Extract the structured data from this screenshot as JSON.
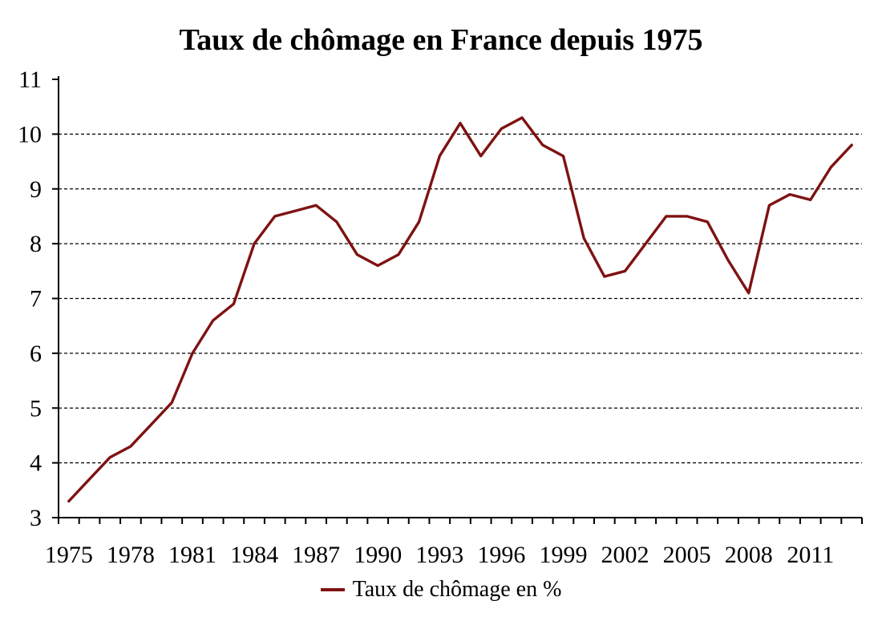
{
  "page": {
    "background_color": "#ffffff",
    "text_color": "#000000"
  },
  "chart_data": {
    "type": "line",
    "title": "Taux de chômage en France depuis 1975",
    "legend_label": "Taux de chômage en %",
    "legend_position": "bottom-center",
    "x": [
      1975,
      1976,
      1977,
      1978,
      1979,
      1980,
      1981,
      1982,
      1983,
      1984,
      1985,
      1986,
      1987,
      1988,
      1989,
      1990,
      1991,
      1992,
      1993,
      1994,
      1995,
      1996,
      1997,
      1998,
      1999,
      2000,
      2001,
      2002,
      2003,
      2004,
      2005,
      2006,
      2007,
      2008,
      2009,
      2010,
      2011,
      2012,
      2013
    ],
    "series": [
      {
        "name": "Taux de chômage en %",
        "color": "#7f1212",
        "values": [
          3.3,
          3.7,
          4.1,
          4.3,
          4.7,
          5.1,
          6.0,
          6.6,
          6.9,
          8.0,
          8.5,
          8.6,
          8.7,
          8.4,
          7.8,
          7.6,
          7.8,
          8.4,
          9.6,
          10.2,
          9.6,
          10.1,
          10.3,
          9.8,
          9.6,
          8.1,
          7.4,
          7.5,
          8.0,
          8.5,
          8.5,
          8.4,
          7.7,
          7.1,
          8.7,
          8.9,
          8.8,
          9.4,
          9.8
        ]
      }
    ],
    "xlabel": "",
    "ylabel": "",
    "ylim": [
      3,
      11
    ],
    "y_tick_step": 1,
    "y_tick_labels": [
      "3",
      "4",
      "5",
      "6",
      "7",
      "8",
      "9",
      "10",
      "11"
    ],
    "x_tick_label_interval": 3,
    "x_tick_labels": [
      "1975",
      "1978",
      "1981",
      "1984",
      "1987",
      "1990",
      "1993",
      "1996",
      "1999",
      "2002",
      "2005",
      "2008",
      "2011"
    ],
    "grid": "horizontal-dashed",
    "grid_color": "#000000",
    "axis_color": "#000000"
  }
}
